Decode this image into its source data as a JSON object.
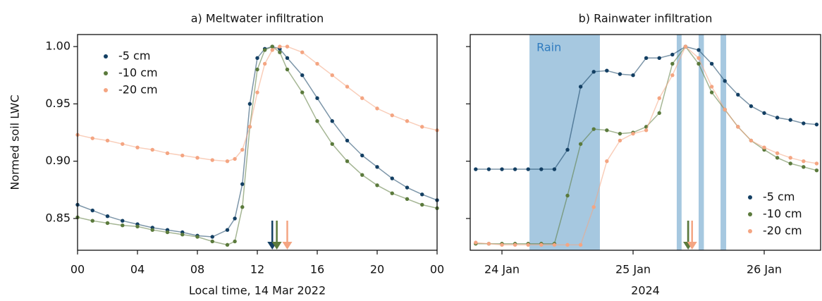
{
  "chart_data": [
    {
      "type": "line",
      "title": "a) Meltwater infiltration",
      "xlabel": "Local time, 14 Mar 2022",
      "ylabel": "Normed soil LWC",
      "x": [
        0,
        1,
        2,
        3,
        4,
        5,
        6,
        7,
        8,
        9,
        10,
        10.5,
        11,
        11.5,
        12,
        12.5,
        13,
        13.5,
        14,
        15,
        16,
        17,
        18,
        19,
        20,
        21,
        22,
        23,
        24
      ],
      "series": [
        {
          "name": "-5 cm",
          "color": "#133f63",
          "peak_x": 13.0,
          "values": [
            0.862,
            0.857,
            0.852,
            0.848,
            0.845,
            0.842,
            0.84,
            0.838,
            0.835,
            0.834,
            0.84,
            0.85,
            0.88,
            0.95,
            0.99,
            0.998,
            1.0,
            0.998,
            0.99,
            0.975,
            0.955,
            0.935,
            0.918,
            0.905,
            0.895,
            0.885,
            0.877,
            0.871,
            0.866
          ]
        },
        {
          "name": "-10 cm",
          "color": "#5b7a3c",
          "peak_x": 13.3,
          "values": [
            0.851,
            0.848,
            0.846,
            0.844,
            0.843,
            0.84,
            0.838,
            0.836,
            0.834,
            0.83,
            0.827,
            0.83,
            0.86,
            0.93,
            0.98,
            0.997,
            1.0,
            0.995,
            0.98,
            0.96,
            0.935,
            0.915,
            0.9,
            0.888,
            0.879,
            0.872,
            0.867,
            0.862,
            0.859
          ]
        },
        {
          "name": "-20 cm",
          "color": "#f4a582",
          "peak_x": 14.0,
          "values": [
            0.923,
            0.92,
            0.918,
            0.915,
            0.912,
            0.91,
            0.907,
            0.905,
            0.903,
            0.901,
            0.9,
            0.902,
            0.91,
            0.93,
            0.96,
            0.985,
            0.997,
            1.0,
            1.0,
            0.995,
            0.985,
            0.975,
            0.965,
            0.955,
            0.946,
            0.94,
            0.935,
            0.93,
            0.927
          ]
        }
      ],
      "xlim": [
        0,
        24
      ],
      "xticks": [
        {
          "value": 0,
          "label": "00"
        },
        {
          "value": 4,
          "label": "04"
        },
        {
          "value": 8,
          "label": "08"
        },
        16,
        20,
        12,
        {
          "value": 24,
          "label": "00"
        }
      ],
      "ylim": [
        0.8223,
        1.0105
      ],
      "yticks": [
        0.85,
        {
          "value": 0.9,
          "label": "0.90"
        },
        0.95,
        {
          "value": 1.0,
          "label": "1.00"
        }
      ],
      "show_ytick_labels": true,
      "legend": "upper left"
    },
    {
      "type": "line",
      "title": "b) Rainwater infiltration",
      "xlabel": "2024",
      "x": [
        23.8,
        23.9,
        24.0,
        24.1,
        24.2,
        24.3,
        24.4,
        24.5,
        24.6,
        24.7,
        24.8,
        24.9,
        25.0,
        25.1,
        25.2,
        25.3,
        25.4,
        25.5,
        25.6,
        25.7,
        25.8,
        25.9,
        26.0,
        26.1,
        26.2,
        26.3,
        26.4
      ],
      "series": [
        {
          "name": "-5 cm",
          "color": "#133f63",
          "peak_x": 25.42,
          "values": [
            0.893,
            0.893,
            0.893,
            0.893,
            0.893,
            0.893,
            0.893,
            0.91,
            0.965,
            0.978,
            0.979,
            0.976,
            0.975,
            0.99,
            0.99,
            0.993,
            1.0,
            0.997,
            0.985,
            0.97,
            0.958,
            0.948,
            0.942,
            0.938,
            0.936,
            0.933,
            0.932
          ]
        },
        {
          "name": "-10 cm",
          "color": "#5b7a3c",
          "peak_x": 25.42,
          "values": [
            0.828,
            0.828,
            0.828,
            0.828,
            0.828,
            0.828,
            0.828,
            0.87,
            0.915,
            0.928,
            0.927,
            0.924,
            0.925,
            0.93,
            0.942,
            0.985,
            1.0,
            0.985,
            0.96,
            0.945,
            0.93,
            0.918,
            0.91,
            0.903,
            0.898,
            0.895,
            0.892
          ]
        },
        {
          "name": "-20 cm",
          "color": "#f4a582",
          "peak_x": 25.45,
          "values": [
            0.829,
            0.828,
            0.827,
            0.827,
            0.827,
            0.827,
            0.827,
            0.827,
            0.827,
            0.86,
            0.9,
            0.918,
            0.924,
            0.927,
            0.955,
            0.975,
            1.0,
            0.99,
            0.965,
            0.945,
            0.93,
            0.918,
            0.912,
            0.907,
            0.903,
            0.9,
            0.898
          ]
        }
      ],
      "rain_label": "Rain",
      "rain_color": "#a6c8e0",
      "rain_periods": [
        [
          24.21,
          24.747
        ],
        [
          25.333,
          25.37
        ],
        [
          25.5,
          25.54
        ],
        [
          25.667,
          25.71
        ]
      ],
      "xlim": [
        23.758,
        26.43
      ],
      "xticks": [
        {
          "value": 24,
          "label": "24 Jan"
        },
        {
          "value": 25,
          "label": "25 Jan"
        },
        {
          "value": 26,
          "label": "26 Jan"
        }
      ],
      "ylim": [
        0.8223,
        1.0105
      ],
      "yticks": [
        0.85,
        0.9,
        0.95,
        1.0
      ],
      "show_ytick_labels": false,
      "legend": "lower right"
    }
  ]
}
